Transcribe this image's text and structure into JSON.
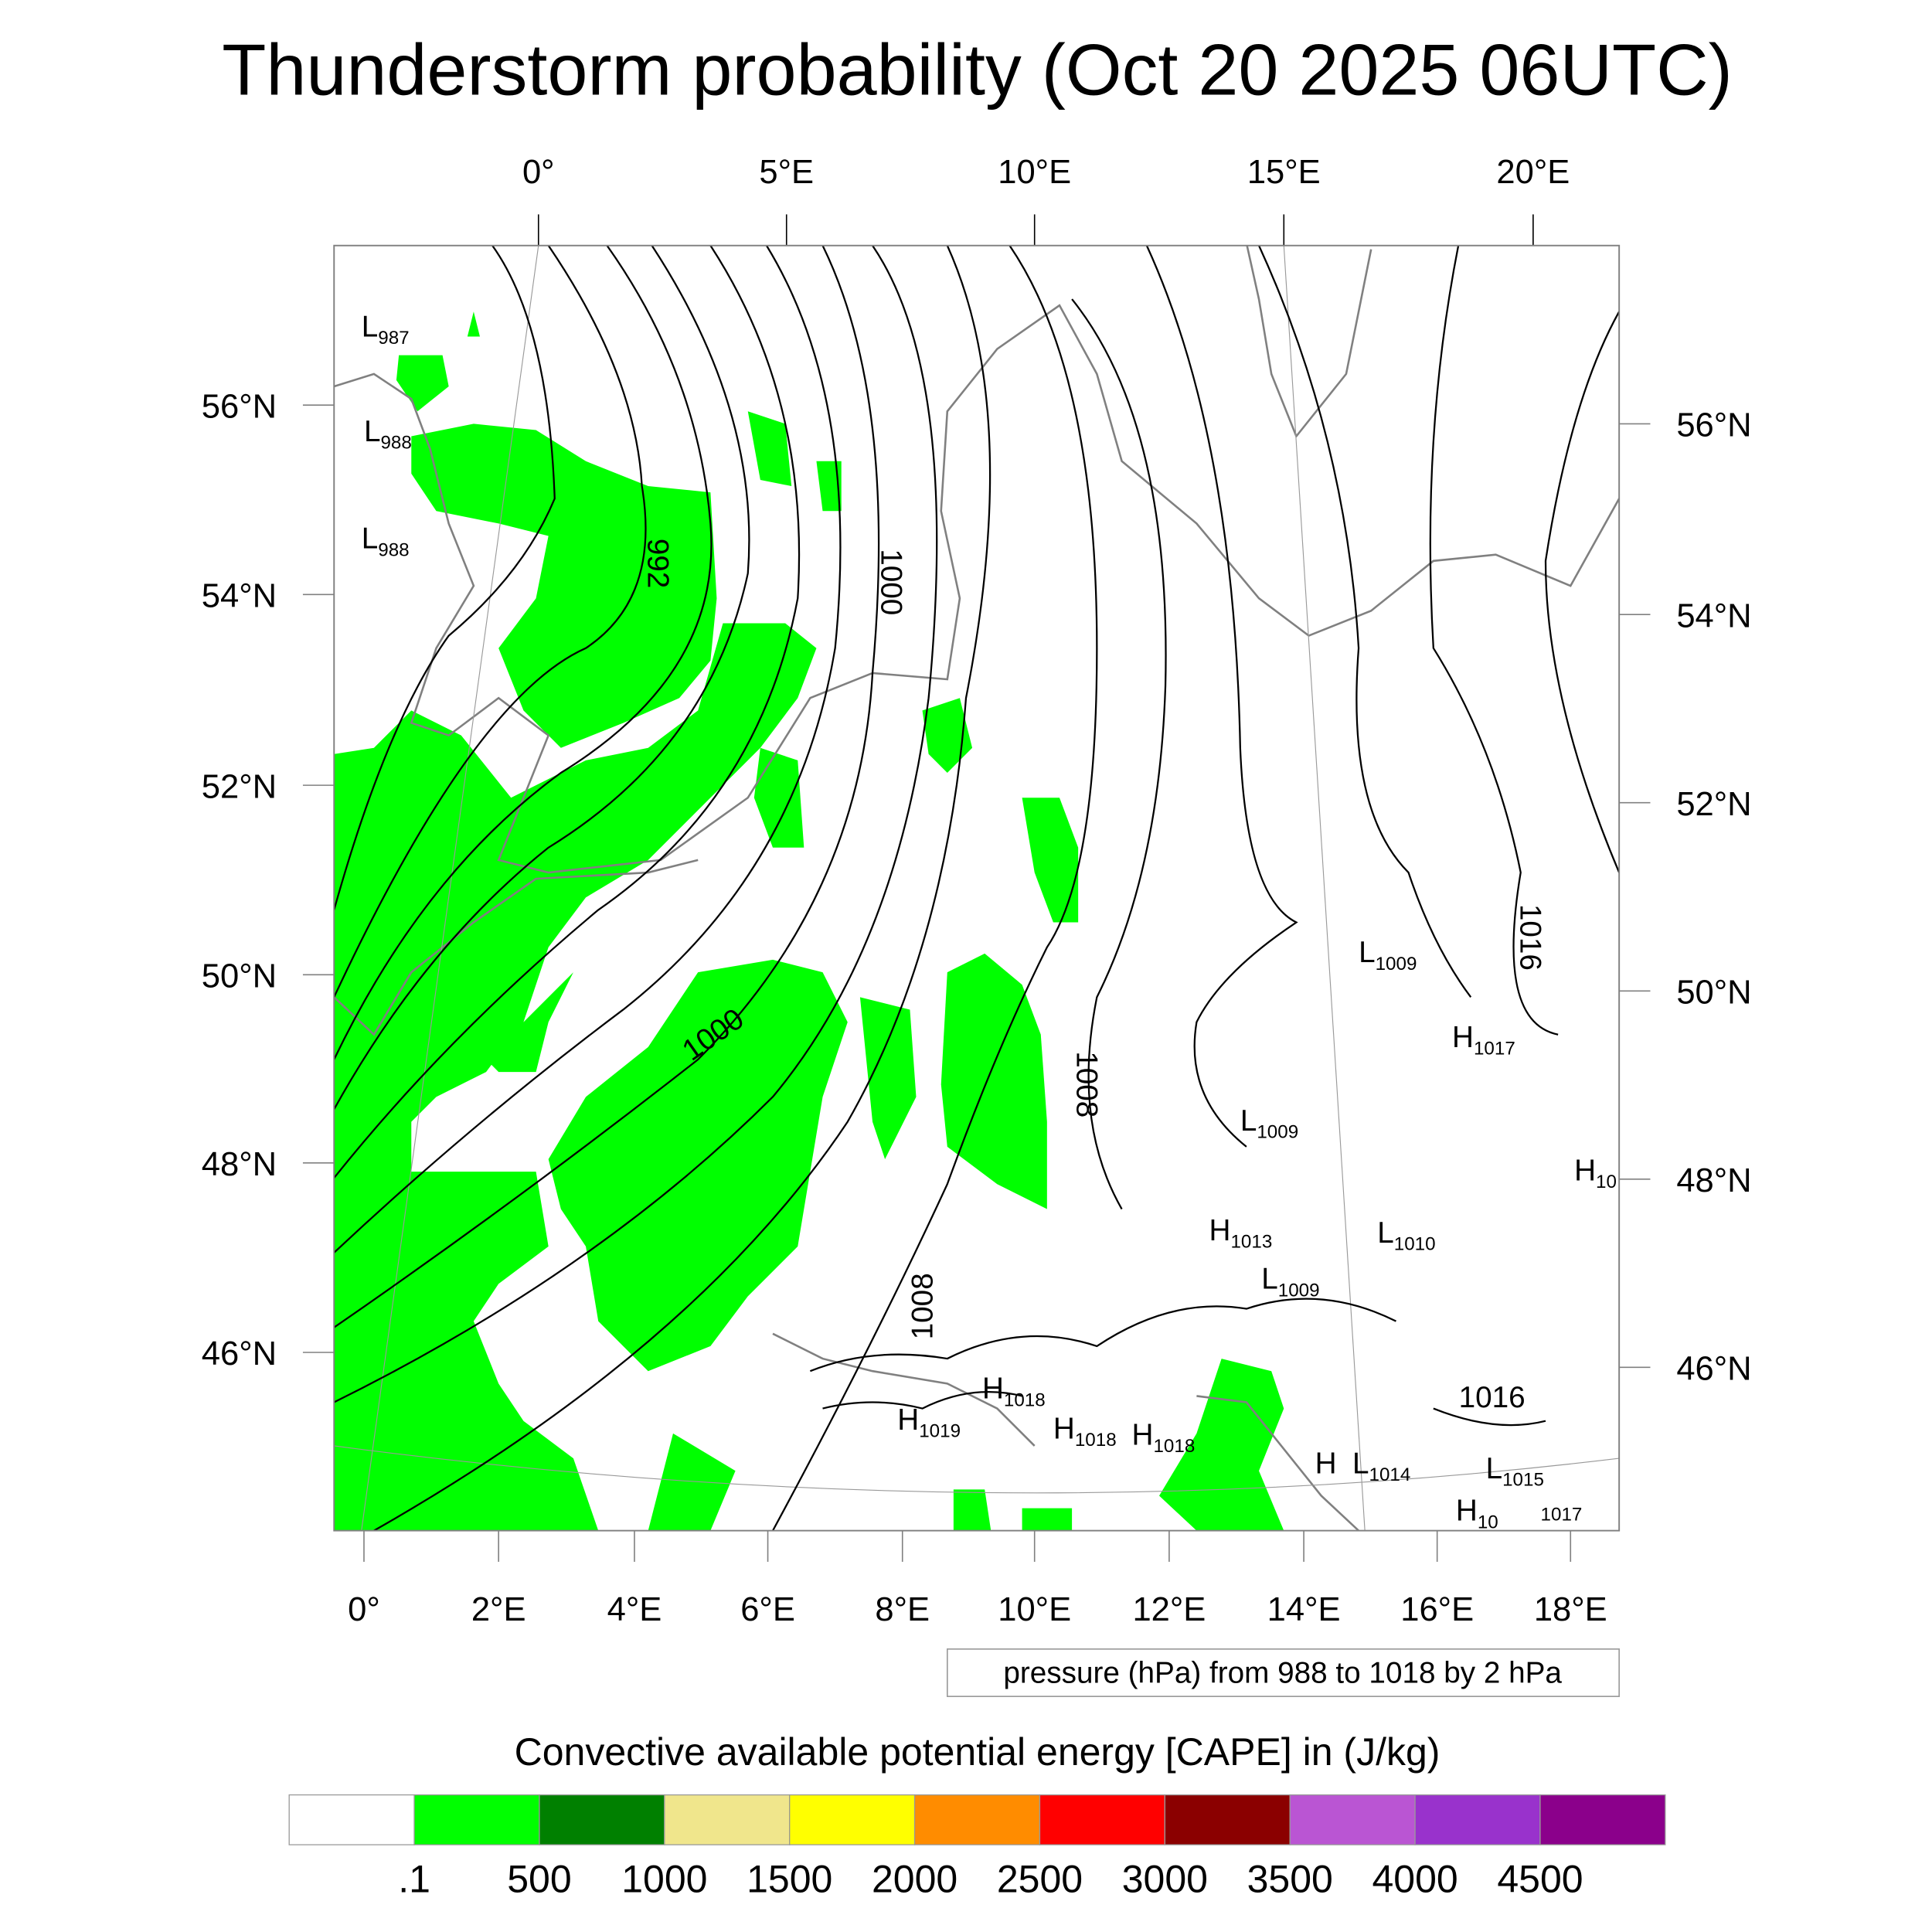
{
  "title": "Thunderstorm probability (Oct 20 2025 06UTC)",
  "top_lon_labels": [
    "0°",
    "5°E",
    "10°E",
    "15°E",
    "20°E"
  ],
  "bottom_lon_labels": [
    "0°",
    "2°E",
    "4°E",
    "6°E",
    "8°E",
    "10°E",
    "12°E",
    "14°E",
    "16°E",
    "18°E"
  ],
  "left_lat_labels": [
    "56°N",
    "54°N",
    "52°N",
    "50°N",
    "48°N",
    "46°N"
  ],
  "right_lat_labels": [
    "56°N",
    "54°N",
    "52°N",
    "50°N",
    "48°N",
    "46°N"
  ],
  "contour_labels": [
    "992",
    "1000",
    "1000",
    "1008",
    "1008",
    "1016",
    "1016"
  ],
  "pressure_centers": [
    {
      "letter": "L",
      "value": "987"
    },
    {
      "letter": "L",
      "value": "988"
    },
    {
      "letter": "L",
      "value": "988"
    },
    {
      "letter": "L",
      "value": "1009"
    },
    {
      "letter": "H",
      "value": "1017"
    },
    {
      "letter": "L",
      "value": "1009"
    },
    {
      "letter": "H",
      "value": "10"
    },
    {
      "letter": "H",
      "value": "1013"
    },
    {
      "letter": "L",
      "value": "1009"
    },
    {
      "letter": "L",
      "value": "1010"
    },
    {
      "letter": "H",
      "value": "1018"
    },
    {
      "letter": "H",
      "value": "1019"
    },
    {
      "letter": "H",
      "value": "1018"
    },
    {
      "letter": "H",
      "value": "1018"
    },
    {
      "letter": "H",
      "value": ""
    },
    {
      "letter": "L",
      "value": "1014"
    },
    {
      "letter": "L",
      "value": "1015"
    },
    {
      "letter": "H",
      "value": "10"
    },
    {
      "letter": "",
      "value": "1017"
    }
  ],
  "contour_info": "pressure (hPa) from 988 to 1018 by 2 hPa",
  "colorbar": {
    "title": "Convective available potential energy [CAPE] in (J/kg)",
    "colors": [
      "#ffffff",
      "#00ff00",
      "#008000",
      "#f0e68c",
      "#ffff00",
      "#ff8c00",
      "#ff0000",
      "#8b0000",
      "#ba55d3",
      "#9932cc",
      "#8b008b"
    ],
    "labels": [
      ".1",
      "500",
      "1000",
      "1500",
      "2000",
      "2500",
      "3000",
      "3500",
      "4000",
      "4500"
    ]
  },
  "colors": {
    "cape_fill": "#00ff00",
    "coast": "#808080",
    "contour": "#000000"
  }
}
